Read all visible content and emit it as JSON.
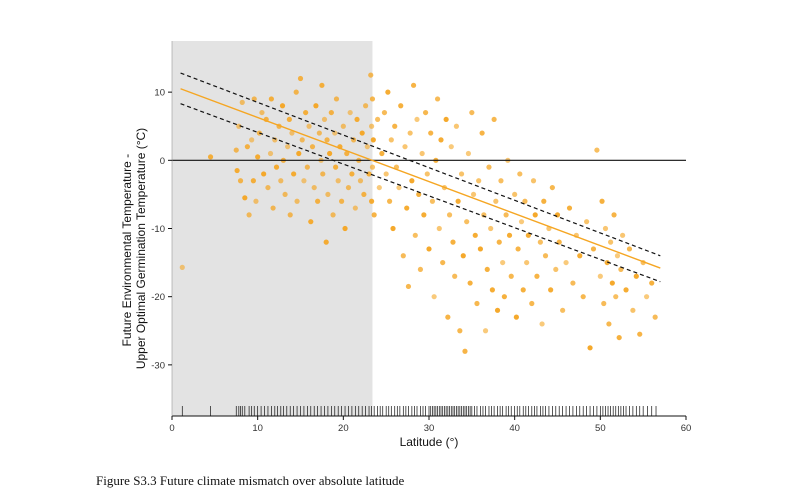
{
  "caption": "Figure S3.3 Future climate mismatch over absolute latitude",
  "chart_data": {
    "type": "scatter",
    "title": "",
    "xlabel": "Latitude (°)",
    "ylabel": [
      "Future Environmental Temperature -",
      "Upper Optimal Germination Temperature  (°C)"
    ],
    "xlim": [
      0,
      60
    ],
    "ylim": [
      -37.5,
      17.5
    ],
    "xticks": [
      0,
      10,
      20,
      30,
      40,
      50,
      60
    ],
    "yticks": [
      10,
      0,
      -10,
      -20,
      -30
    ],
    "shaded_region": {
      "x": [
        0,
        23.4
      ],
      "color": "#e3e3e3"
    },
    "reference_line_y": 0,
    "grid": false,
    "point_color": "#f5a623",
    "fit_line": {
      "color": "#f5a623",
      "x": [
        1,
        57
      ],
      "y": [
        10.5,
        -15.8
      ]
    },
    "ci_lines": {
      "color": "#111111",
      "style": "dashed",
      "upper": {
        "x": [
          1,
          57
        ],
        "y": [
          12.8,
          -14.0
        ]
      },
      "lower": {
        "x": [
          1,
          57
        ],
        "y": [
          8.3,
          -17.8
        ]
      }
    },
    "points": [
      [
        1.2,
        -15.7
      ],
      [
        4.5,
        0.5
      ],
      [
        7.5,
        1.5
      ],
      [
        7.8,
        5
      ],
      [
        7.6,
        -1.5
      ],
      [
        8,
        -3
      ],
      [
        8.2,
        8.5
      ],
      [
        8.5,
        -5.5
      ],
      [
        8.8,
        2
      ],
      [
        9,
        -8
      ],
      [
        9.3,
        3
      ],
      [
        9.5,
        -3
      ],
      [
        9.6,
        9
      ],
      [
        9.8,
        -6
      ],
      [
        10,
        0.5
      ],
      [
        10.2,
        4
      ],
      [
        10.5,
        7
      ],
      [
        10.7,
        -2
      ],
      [
        11,
        6
      ],
      [
        11.2,
        -4
      ],
      [
        11.5,
        1
      ],
      [
        11.6,
        9
      ],
      [
        11.8,
        -7
      ],
      [
        12,
        3
      ],
      [
        12.2,
        -1
      ],
      [
        12.5,
        5
      ],
      [
        12.7,
        -3
      ],
      [
        12.9,
        8
      ],
      [
        13,
        0
      ],
      [
        13.2,
        -5
      ],
      [
        13.5,
        2
      ],
      [
        13.7,
        6
      ],
      [
        13.8,
        -8
      ],
      [
        14,
        4
      ],
      [
        14.2,
        -2
      ],
      [
        14.5,
        10
      ],
      [
        14.6,
        -6
      ],
      [
        14.8,
        1
      ],
      [
        15,
        12
      ],
      [
        15.2,
        3
      ],
      [
        15.4,
        -3
      ],
      [
        15.6,
        7
      ],
      [
        15.8,
        -1
      ],
      [
        16,
        5
      ],
      [
        16.2,
        -9
      ],
      [
        16.4,
        2
      ],
      [
        16.6,
        -4
      ],
      [
        16.8,
        8
      ],
      [
        17,
        -6
      ],
      [
        17.2,
        4
      ],
      [
        17.4,
        0
      ],
      [
        17.5,
        11
      ],
      [
        17.6,
        -2
      ],
      [
        17.8,
        6
      ],
      [
        18,
        -12
      ],
      [
        18.1,
        3
      ],
      [
        18.2,
        -5
      ],
      [
        18.4,
        1
      ],
      [
        18.6,
        7
      ],
      [
        18.8,
        -8
      ],
      [
        19,
        4
      ],
      [
        19.1,
        -1
      ],
      [
        19.2,
        9
      ],
      [
        19.4,
        -3
      ],
      [
        19.6,
        2
      ],
      [
        19.8,
        -6
      ],
      [
        20,
        5
      ],
      [
        20.2,
        -10
      ],
      [
        20.4,
        1
      ],
      [
        20.6,
        -4
      ],
      [
        20.8,
        7
      ],
      [
        21,
        -2
      ],
      [
        21.2,
        3
      ],
      [
        21.4,
        -7
      ],
      [
        21.6,
        6
      ],
      [
        21.8,
        0
      ],
      [
        22,
        -3
      ],
      [
        22.2,
        4
      ],
      [
        22.4,
        -5
      ],
      [
        22.6,
        8
      ],
      [
        22.8,
        2
      ],
      [
        23,
        -2
      ],
      [
        23.2,
        12.5
      ],
      [
        23.3,
        5
      ],
      [
        23.3,
        -6
      ],
      [
        23.4,
        9
      ],
      [
        23.4,
        -1
      ],
      [
        23.5,
        3
      ],
      [
        23.6,
        -8
      ],
      [
        24,
        6
      ],
      [
        24.2,
        -4
      ],
      [
        24.5,
        1
      ],
      [
        24.8,
        7
      ],
      [
        25,
        -2
      ],
      [
        25.2,
        10
      ],
      [
        25.4,
        -6
      ],
      [
        25.6,
        3
      ],
      [
        25.8,
        -10
      ],
      [
        26,
        5
      ],
      [
        26.2,
        -1
      ],
      [
        26.5,
        -4
      ],
      [
        26.7,
        8
      ],
      [
        27,
        -14
      ],
      [
        27.2,
        2
      ],
      [
        27.4,
        -7
      ],
      [
        27.6,
        -18.5
      ],
      [
        27.8,
        4
      ],
      [
        28,
        -3
      ],
      [
        28.2,
        11
      ],
      [
        28.4,
        -11
      ],
      [
        28.6,
        6
      ],
      [
        28.8,
        -5
      ],
      [
        29,
        -16
      ],
      [
        29.2,
        1
      ],
      [
        29.4,
        -8
      ],
      [
        29.6,
        7
      ],
      [
        29.8,
        -2
      ],
      [
        30,
        -13
      ],
      [
        30.2,
        4
      ],
      [
        30.4,
        -6
      ],
      [
        30.6,
        -20
      ],
      [
        30.8,
        0
      ],
      [
        31,
        9
      ],
      [
        31.2,
        -10
      ],
      [
        31.4,
        3
      ],
      [
        31.6,
        -15
      ],
      [
        31.8,
        -4
      ],
      [
        32,
        6
      ],
      [
        32.2,
        -23
      ],
      [
        32.4,
        -8
      ],
      [
        32.6,
        2
      ],
      [
        32.8,
        -12
      ],
      [
        33,
        -17
      ],
      [
        33.2,
        5
      ],
      [
        33.4,
        -6
      ],
      [
        33.6,
        -25
      ],
      [
        33.8,
        -2
      ],
      [
        34,
        -14
      ],
      [
        34.2,
        -28
      ],
      [
        34.4,
        -9
      ],
      [
        34.6,
        1
      ],
      [
        34.8,
        -18
      ],
      [
        35,
        7
      ],
      [
        35.2,
        -5
      ],
      [
        35.4,
        -11
      ],
      [
        35.6,
        -21
      ],
      [
        35.8,
        -3
      ],
      [
        36,
        -13
      ],
      [
        36.2,
        4
      ],
      [
        36.4,
        -8
      ],
      [
        36.6,
        -25
      ],
      [
        36.8,
        -16
      ],
      [
        37,
        -1
      ],
      [
        37.2,
        -10
      ],
      [
        37.4,
        -19
      ],
      [
        37.6,
        6
      ],
      [
        37.8,
        -6
      ],
      [
        38,
        -22
      ],
      [
        38.2,
        -12
      ],
      [
        38.4,
        -3
      ],
      [
        38.6,
        -15
      ],
      [
        38.8,
        -20
      ],
      [
        39,
        -8
      ],
      [
        39.2,
        0
      ],
      [
        39.4,
        -11
      ],
      [
        39.6,
        -17
      ],
      [
        40,
        -5
      ],
      [
        40.2,
        -23
      ],
      [
        40.4,
        -13
      ],
      [
        40.6,
        -2
      ],
      [
        40.8,
        -9
      ],
      [
        41,
        -19
      ],
      [
        41.2,
        -6
      ],
      [
        41.4,
        -15
      ],
      [
        41.6,
        -11
      ],
      [
        42,
        -21
      ],
      [
        42.2,
        -3
      ],
      [
        42.4,
        -8
      ],
      [
        42.6,
        -17
      ],
      [
        43,
        -12
      ],
      [
        43.2,
        -24
      ],
      [
        43.4,
        -6
      ],
      [
        43.6,
        -14
      ],
      [
        44,
        -10
      ],
      [
        44.2,
        -19
      ],
      [
        44.4,
        -4
      ],
      [
        44.8,
        -16
      ],
      [
        45,
        -8
      ],
      [
        45.2,
        -12
      ],
      [
        45.6,
        -22
      ],
      [
        46,
        -15
      ],
      [
        46.4,
        -7
      ],
      [
        46.8,
        -18
      ],
      [
        47.2,
        -11
      ],
      [
        47.6,
        -14
      ],
      [
        48,
        -20
      ],
      [
        48.4,
        -9
      ],
      [
        48.8,
        -27.5
      ],
      [
        49.2,
        -13
      ],
      [
        49.6,
        1.5
      ],
      [
        50,
        -17
      ],
      [
        50.2,
        -6
      ],
      [
        50.4,
        -21
      ],
      [
        50.6,
        -10
      ],
      [
        50.8,
        -15
      ],
      [
        51,
        -24
      ],
      [
        51.2,
        -12
      ],
      [
        51.4,
        -18
      ],
      [
        51.6,
        -8
      ],
      [
        51.8,
        -20
      ],
      [
        52,
        -14
      ],
      [
        52.2,
        -26
      ],
      [
        52.4,
        -16
      ],
      [
        52.6,
        -11
      ],
      [
        53,
        -19
      ],
      [
        53.4,
        -13
      ],
      [
        53.8,
        -22
      ],
      [
        54.2,
        -17
      ],
      [
        54.6,
        -25.5
      ],
      [
        55,
        -15
      ],
      [
        55.4,
        -20
      ],
      [
        56,
        -18
      ],
      [
        56.4,
        -23
      ]
    ],
    "rug_x": [
      1.2,
      4.5,
      7.5,
      7.8,
      8,
      8.2,
      8.5,
      9,
      9.3,
      9.6,
      10,
      10.4,
      10.8,
      11.2,
      11.6,
      12,
      12.3,
      12.7,
      13,
      13.4,
      13.8,
      14.2,
      14.6,
      15,
      15.4,
      15.8,
      16.2,
      16.6,
      17,
      17.4,
      17.8,
      18.2,
      18.6,
      19,
      19.4,
      19.8,
      20.2,
      20.6,
      21,
      21.4,
      21.8,
      22.2,
      22.6,
      23,
      23.3,
      23.6,
      24,
      24.3,
      24.6,
      25,
      25.3,
      25.6,
      26,
      26.3,
      26.6,
      27,
      27.3,
      27.6,
      28,
      28.3,
      28.6,
      29,
      29.3,
      29.6,
      30,
      30.2,
      30.4,
      30.6,
      30.8,
      31,
      31.2,
      31.4,
      31.6,
      31.8,
      32,
      32.2,
      32.4,
      32.6,
      32.8,
      33,
      33.2,
      33.4,
      33.6,
      33.8,
      34,
      34.2,
      34.4,
      34.6,
      34.8,
      35,
      35.3,
      35.6,
      36,
      36.3,
      36.6,
      37,
      37.3,
      37.6,
      38,
      38.3,
      38.6,
      39,
      39.3,
      39.6,
      40,
      40.3,
      40.6,
      41,
      41.3,
      41.6,
      42,
      42.3,
      42.6,
      43,
      43.3,
      43.6,
      44,
      44.4,
      44.8,
      45.2,
      45.6,
      46,
      46.4,
      46.8,
      47.2,
      47.6,
      48,
      48.4,
      48.8,
      49.2,
      49.6,
      50,
      50.3,
      50.6,
      50.9,
      51.2,
      51.5,
      51.8,
      52.1,
      52.4,
      52.7,
      53,
      53.4,
      53.8,
      54.2,
      54.6,
      55,
      55.5,
      56,
      56.5
    ]
  }
}
